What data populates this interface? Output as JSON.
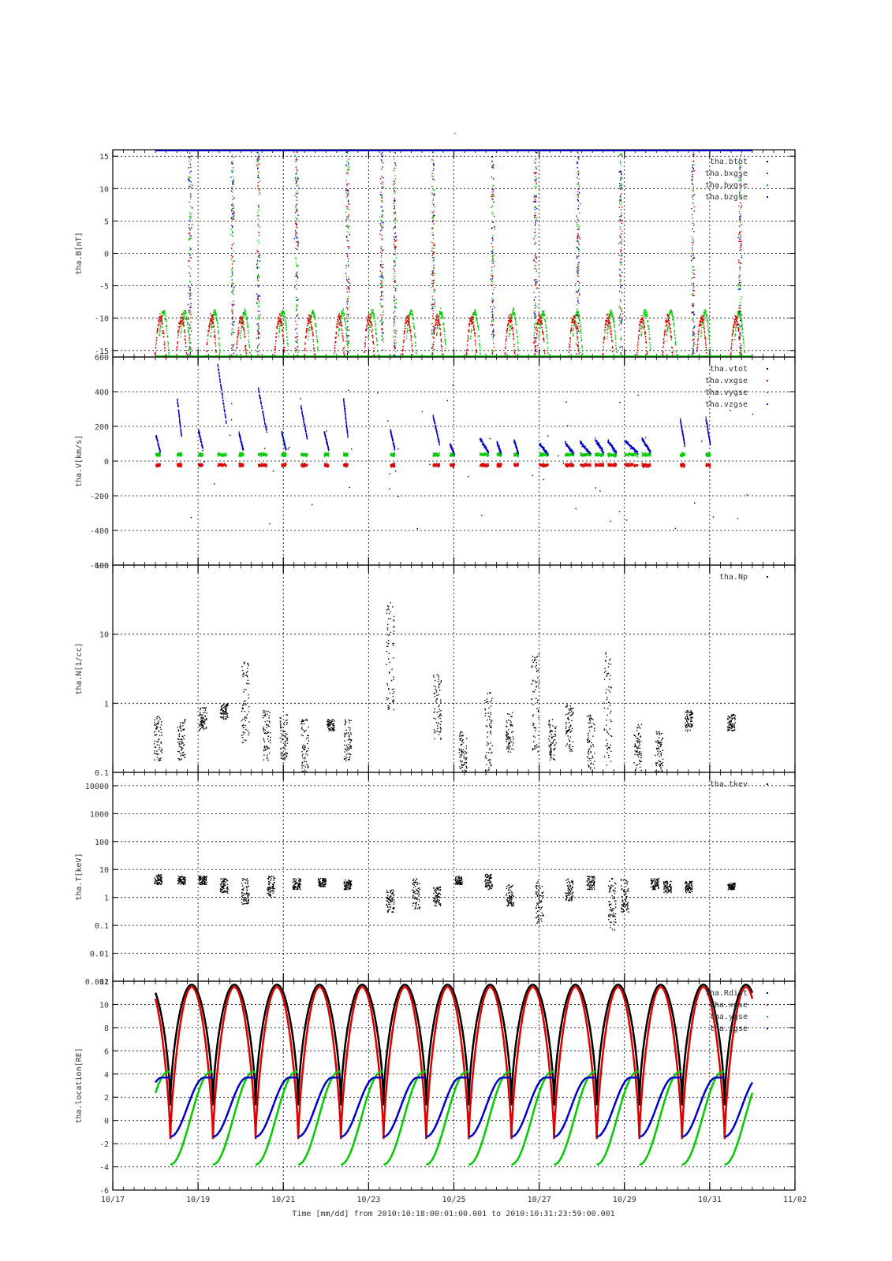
{
  "page": {
    "title": "-",
    "time_caption": "Time [mm/dd]  from 2010:10:18:00:01:00.001  to  2010:10:31:23:59:00.001"
  },
  "x_axis": {
    "range_days": [
      17,
      33
    ],
    "tick_labels": [
      "10/17",
      "10/19",
      "10/21",
      "10/23",
      "10/25",
      "10/27",
      "10/29",
      "10/31",
      "11/02"
    ],
    "major_tick_days": [
      17,
      19,
      21,
      23,
      25,
      27,
      29,
      31,
      33
    ],
    "data_start_day": 18.0,
    "data_end_day": 32.0
  },
  "colors": {
    "black": "#000000",
    "red": "#dd0000",
    "green": "#00cc00",
    "blue": "#0000cc"
  },
  "chart_data": [
    {
      "id": "B",
      "type": "scatter",
      "ylabel": "tha.B[nT]",
      "ylim": [
        -16,
        16
      ],
      "log": false,
      "yticks": [
        15,
        10,
        5,
        0,
        -5,
        -10,
        -15
      ],
      "ytick_labels": [
        "15",
        "10",
        "5",
        "0",
        "-5",
        "-10",
        "-15"
      ],
      "legend": [
        "tha.btot",
        "tha.bxgse",
        "tha.bygse",
        "tha.bzgse"
      ],
      "legend_placement": "top-right",
      "grid": true,
      "series": [
        {
          "name": "tha.btot",
          "color": "#000000",
          "approx_level": 16
        },
        {
          "name": "tha.bxgse",
          "color": "#dd0000",
          "arcs_peak": -10
        },
        {
          "name": "tha.bygse",
          "color": "#00cc00",
          "arcs_peak": -9
        },
        {
          "name": "tha.bzgse",
          "color": "#0000cc",
          "approx_level": 16
        }
      ],
      "burst_days": [
        18.8,
        19.8,
        20.4,
        21.3,
        22.5,
        23.3,
        23.6,
        24.5,
        25.9,
        26.9,
        27.9,
        28.9,
        30.6,
        31.7
      ],
      "arc_days": [
        18.1,
        18.6,
        19.3,
        20.0,
        20.9,
        21.6,
        22.3,
        23.0,
        23.9,
        24.6,
        25.4,
        26.3,
        27.0,
        27.8,
        28.6,
        29.4,
        30.0,
        30.8,
        31.6
      ]
    },
    {
      "id": "V",
      "type": "scatter",
      "ylabel": "tha.V[km/s]",
      "ylim": [
        -600,
        600
      ],
      "log": false,
      "yticks": [
        600,
        400,
        200,
        0,
        -200,
        -400,
        -600
      ],
      "ytick_labels": [
        "600",
        "400",
        "200",
        "0",
        "-200",
        "-400",
        "-600"
      ],
      "legend": [
        "tha.vtot",
        "tha.vxgse",
        "tha.vygse",
        "tha.vzgse"
      ],
      "legend_placement": "top-right",
      "grid": true,
      "series": [
        {
          "name": "tha.vtot",
          "color": "#000000"
        },
        {
          "name": "tha.vxgse",
          "color": "#dd0000",
          "approx_level": -20
        },
        {
          "name": "tha.vygse",
          "color": "#00cc00",
          "approx_level": 40
        },
        {
          "name": "tha.vzgse",
          "color": "#0000cc",
          "approx_level": 150
        }
      ],
      "segments": [
        {
          "start": 18.0,
          "end": 18.1,
          "peak": 150
        },
        {
          "start": 18.5,
          "end": 18.6,
          "peak": 360
        },
        {
          "start": 19.0,
          "end": 19.1,
          "peak": 180
        },
        {
          "start": 19.45,
          "end": 19.65,
          "peak": 560
        },
        {
          "start": 19.95,
          "end": 20.05,
          "peak": 160
        },
        {
          "start": 20.4,
          "end": 20.6,
          "peak": 420
        },
        {
          "start": 20.95,
          "end": 21.05,
          "peak": 170
        },
        {
          "start": 21.4,
          "end": 21.55,
          "peak": 320
        },
        {
          "start": 21.95,
          "end": 22.05,
          "peak": 170
        },
        {
          "start": 22.4,
          "end": 22.5,
          "peak": 360
        },
        {
          "start": 23.5,
          "end": 23.6,
          "peak": 180
        },
        {
          "start": 24.5,
          "end": 24.65,
          "peak": 260
        },
        {
          "start": 24.9,
          "end": 25.0,
          "peak": 100
        },
        {
          "start": 25.6,
          "end": 25.8,
          "peak": 130
        },
        {
          "start": 26.0,
          "end": 26.1,
          "peak": 110
        },
        {
          "start": 26.4,
          "end": 26.5,
          "peak": 120
        },
        {
          "start": 27.0,
          "end": 27.2,
          "peak": 100
        },
        {
          "start": 27.6,
          "end": 27.8,
          "peak": 110
        },
        {
          "start": 27.95,
          "end": 28.2,
          "peak": 110
        },
        {
          "start": 28.3,
          "end": 28.5,
          "peak": 130
        },
        {
          "start": 28.6,
          "end": 28.8,
          "peak": 120
        },
        {
          "start": 29.0,
          "end": 29.3,
          "peak": 120
        },
        {
          "start": 29.4,
          "end": 29.6,
          "peak": 130
        },
        {
          "start": 30.3,
          "end": 30.4,
          "peak": 240
        },
        {
          "start": 30.9,
          "end": 31.0,
          "peak": 250
        }
      ]
    },
    {
      "id": "N",
      "type": "scatter",
      "ylabel": "tha.N[1/cc]",
      "ylim": [
        0.1,
        100
      ],
      "log": true,
      "yticks": [
        100,
        10,
        1,
        0.1
      ],
      "ytick_labels": [
        "100",
        "10",
        "1",
        "0.1"
      ],
      "legend": [
        "tha.Np"
      ],
      "legend_placement": "top-right",
      "grid": true,
      "series": [
        {
          "name": "tha.Np",
          "color": "#000000"
        }
      ],
      "clusters": [
        {
          "day": 18.05,
          "lo": 0.15,
          "hi": 0.7
        },
        {
          "day": 18.6,
          "lo": 0.15,
          "hi": 0.6
        },
        {
          "day": 19.1,
          "lo": 0.4,
          "hi": 0.9
        },
        {
          "day": 19.6,
          "lo": 0.6,
          "hi": 1.0
        },
        {
          "day": 20.1,
          "lo": 0.25,
          "hi": 4.0
        },
        {
          "day": 20.6,
          "lo": 0.15,
          "hi": 0.8
        },
        {
          "day": 21.0,
          "lo": 0.15,
          "hi": 0.7
        },
        {
          "day": 21.5,
          "lo": 0.1,
          "hi": 0.6
        },
        {
          "day": 22.1,
          "lo": 0.4,
          "hi": 0.6
        },
        {
          "day": 22.5,
          "lo": 0.15,
          "hi": 0.6
        },
        {
          "day": 23.5,
          "lo": 0.8,
          "hi": 30
        },
        {
          "day": 24.6,
          "lo": 0.3,
          "hi": 3.0
        },
        {
          "day": 25.2,
          "lo": 0.1,
          "hi": 0.4
        },
        {
          "day": 25.8,
          "lo": 0.1,
          "hi": 1.5
        },
        {
          "day": 26.3,
          "lo": 0.2,
          "hi": 0.8
        },
        {
          "day": 26.9,
          "lo": 0.2,
          "hi": 6.0
        },
        {
          "day": 27.3,
          "lo": 0.15,
          "hi": 0.6
        },
        {
          "day": 27.7,
          "lo": 0.2,
          "hi": 1.0
        },
        {
          "day": 28.2,
          "lo": 0.1,
          "hi": 0.7
        },
        {
          "day": 28.6,
          "lo": 0.1,
          "hi": 6.0
        },
        {
          "day": 29.3,
          "lo": 0.1,
          "hi": 0.5
        },
        {
          "day": 29.8,
          "lo": 0.1,
          "hi": 0.4
        },
        {
          "day": 30.5,
          "lo": 0.4,
          "hi": 0.8
        },
        {
          "day": 31.5,
          "lo": 0.4,
          "hi": 0.7
        }
      ]
    },
    {
      "id": "T",
      "type": "scatter",
      "ylabel": "tha.T[keV]",
      "ylim": [
        0.001,
        30000
      ],
      "log": true,
      "yticks": [
        10000,
        1000,
        100,
        10,
        1,
        0.1,
        0.01,
        0.001
      ],
      "ytick_labels": [
        "10000",
        "1000",
        "100",
        "10",
        "1",
        "0.1",
        "0.01",
        "0.001"
      ],
      "legend": [
        "tha.tkev"
      ],
      "legend_placement": "top-right",
      "grid": true,
      "series": [
        {
          "name": "tha.tkev",
          "color": "#000000"
        }
      ],
      "clusters": [
        {
          "day": 18.05,
          "lo": 3.0,
          "hi": 7.0
        },
        {
          "day": 18.6,
          "lo": 3.0,
          "hi": 6.0
        },
        {
          "day": 19.1,
          "lo": 3.0,
          "hi": 6.0
        },
        {
          "day": 19.6,
          "lo": 1.5,
          "hi": 5.0
        },
        {
          "day": 20.1,
          "lo": 0.6,
          "hi": 5.0
        },
        {
          "day": 20.7,
          "lo": 1.0,
          "hi": 6.0
        },
        {
          "day": 21.3,
          "lo": 2.0,
          "hi": 5.0
        },
        {
          "day": 21.9,
          "lo": 2.5,
          "hi": 5.0
        },
        {
          "day": 22.5,
          "lo": 2.0,
          "hi": 4.5
        },
        {
          "day": 23.5,
          "lo": 0.3,
          "hi": 2.0
        },
        {
          "day": 24.1,
          "lo": 0.4,
          "hi": 5.0
        },
        {
          "day": 24.6,
          "lo": 0.5,
          "hi": 2.5
        },
        {
          "day": 25.1,
          "lo": 3.0,
          "hi": 6.0
        },
        {
          "day": 25.8,
          "lo": 2.0,
          "hi": 7.0
        },
        {
          "day": 26.3,
          "lo": 0.5,
          "hi": 3.0
        },
        {
          "day": 27.0,
          "lo": 0.1,
          "hi": 4.0
        },
        {
          "day": 27.7,
          "lo": 0.8,
          "hi": 5.0
        },
        {
          "day": 28.2,
          "lo": 2.0,
          "hi": 6.0
        },
        {
          "day": 28.7,
          "lo": 0.06,
          "hi": 5.0
        },
        {
          "day": 29.0,
          "lo": 0.3,
          "hi": 5.0
        },
        {
          "day": 29.7,
          "lo": 2.0,
          "hi": 5.0
        },
        {
          "day": 30.0,
          "lo": 1.5,
          "hi": 4.0
        },
        {
          "day": 30.5,
          "lo": 1.5,
          "hi": 4.0
        },
        {
          "day": 31.5,
          "lo": 2.0,
          "hi": 3.5
        }
      ]
    },
    {
      "id": "location",
      "type": "line",
      "ylabel": "tha.location[RE]",
      "ylim": [
        -6,
        12
      ],
      "log": false,
      "yticks": [
        12,
        10,
        8,
        6,
        4,
        2,
        0,
        -2,
        -4,
        -6
      ],
      "ytick_labels": [
        "12",
        "10",
        "8",
        "6",
        "4",
        "2",
        "0",
        "-2",
        "-4",
        "-6"
      ],
      "legend": [
        "tha.Rdist",
        "tha.xgse",
        "tha.ygse",
        "tha.zgse"
      ],
      "legend_placement": "top-right",
      "grid": true,
      "orbit_period_days": 1.0,
      "first_perigee_day": 18.35,
      "series": [
        {
          "name": "tha.Rdist",
          "color": "#000000",
          "max": 11.7,
          "min": 1.3
        },
        {
          "name": "tha.xgse",
          "color": "#dd0000",
          "max": 11.5,
          "min": -1.6
        },
        {
          "name": "tha.ygse",
          "color": "#00cc00",
          "max": 4.2,
          "min": -3.8
        },
        {
          "name": "tha.zgse",
          "color": "#0000cc",
          "max": 3.7,
          "min": -1.4
        }
      ]
    }
  ]
}
